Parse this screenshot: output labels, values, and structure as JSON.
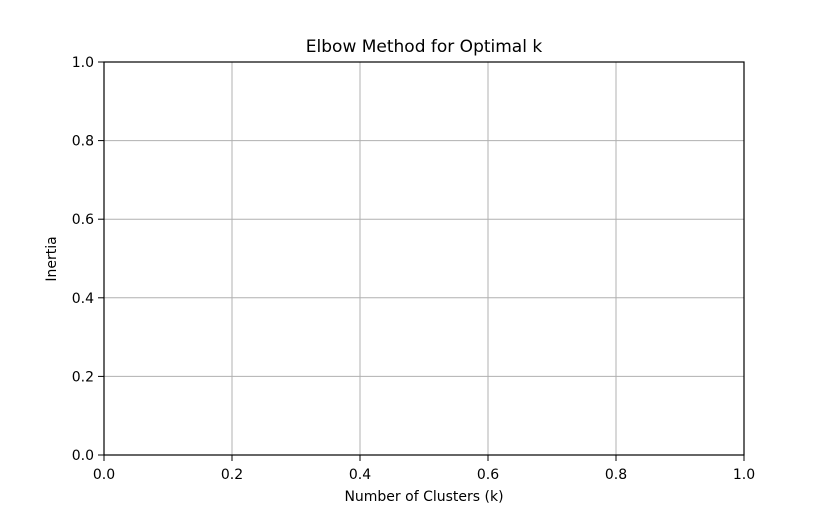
{
  "chart_data": {
    "type": "line",
    "title": "Elbow Method for Optimal k",
    "xlabel": "Number of Clusters (k)",
    "ylabel": "Inertia",
    "xlim": [
      0.0,
      1.0
    ],
    "ylim": [
      0.0,
      1.0
    ],
    "x_ticks": [
      0.0,
      0.2,
      0.4,
      0.6,
      0.8,
      1.0
    ],
    "y_ticks": [
      0.0,
      0.2,
      0.4,
      0.6,
      0.8,
      1.0
    ],
    "x_tick_labels": [
      "0.0",
      "0.2",
      "0.4",
      "0.6",
      "0.8",
      "1.0"
    ],
    "y_tick_labels": [
      "0.0",
      "0.2",
      "0.4",
      "0.6",
      "0.8",
      "1.0"
    ],
    "grid": true,
    "series": [],
    "colors": {
      "grid": "#b0b0b0",
      "axis": "#000000",
      "text": "#000000",
      "background": "#ffffff"
    }
  }
}
